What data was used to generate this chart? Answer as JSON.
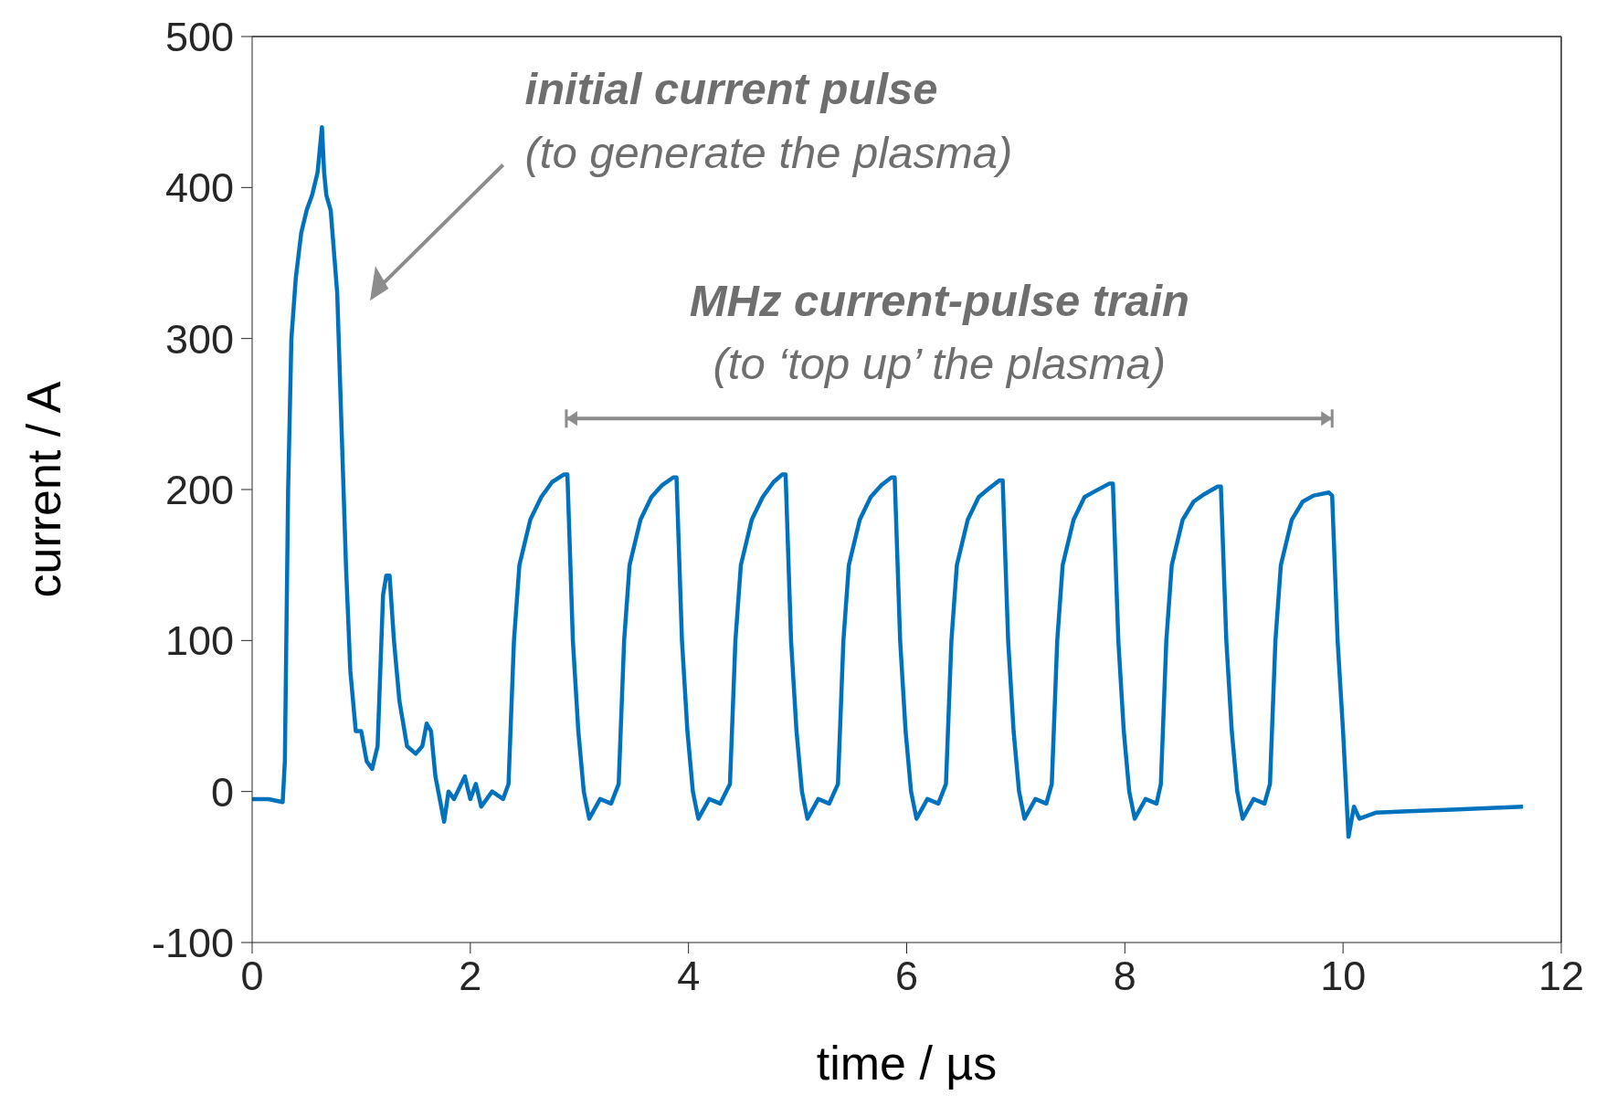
{
  "chart_data": {
    "type": "line",
    "xlabel": "time / µs",
    "ylabel": "current / A",
    "xlim": [
      0,
      12
    ],
    "ylim": [
      -100,
      500
    ],
    "xticks": [
      0,
      2,
      4,
      6,
      8,
      10,
      12
    ],
    "yticks": [
      -100,
      0,
      100,
      200,
      300,
      400,
      500
    ],
    "grid": false,
    "marker": "none",
    "line_style": "solid",
    "series": [
      {
        "color": "#0072bd",
        "x": [
          0,
          0.15,
          0.28,
          0.3,
          0.33,
          0.36,
          0.4,
          0.45,
          0.5,
          0.55,
          0.6,
          0.64,
          0.66,
          0.68,
          0.72,
          0.78,
          0.82,
          0.86,
          0.9,
          0.95,
          1.0,
          1.05,
          1.1,
          1.15,
          1.2,
          1.23,
          1.26,
          1.3,
          1.35,
          1.42,
          1.5,
          1.56,
          1.6,
          1.64,
          1.68,
          1.72,
          1.76,
          1.8,
          1.85,
          1.95,
          2.0,
          2.05,
          2.1,
          2.2,
          2.3,
          2.35,
          2.4,
          2.45,
          2.55,
          2.65,
          2.75,
          2.86,
          2.89,
          2.94,
          2.99,
          3.04,
          3.09,
          3.19,
          3.29,
          3.36,
          3.41,
          3.46,
          3.56,
          3.66,
          3.76,
          3.86,
          3.89,
          3.94,
          3.99,
          4.04,
          4.09,
          4.19,
          4.29,
          4.38,
          4.43,
          4.48,
          4.58,
          4.68,
          4.78,
          4.86,
          4.89,
          4.94,
          4.99,
          5.04,
          5.09,
          5.19,
          5.29,
          5.37,
          5.42,
          5.47,
          5.57,
          5.67,
          5.77,
          5.86,
          5.89,
          5.94,
          5.99,
          6.04,
          6.09,
          6.19,
          6.29,
          6.36,
          6.41,
          6.46,
          6.56,
          6.66,
          6.76,
          6.85,
          6.88,
          6.93,
          6.98,
          7.03,
          7.08,
          7.18,
          7.28,
          7.33,
          7.38,
          7.43,
          7.53,
          7.63,
          7.73,
          7.86,
          7.89,
          7.94,
          7.99,
          8.04,
          8.09,
          8.19,
          8.29,
          8.33,
          8.38,
          8.43,
          8.53,
          8.63,
          8.73,
          8.85,
          8.88,
          8.93,
          8.98,
          9.03,
          9.08,
          9.18,
          9.28,
          9.33,
          9.38,
          9.43,
          9.53,
          9.63,
          9.73,
          9.87,
          9.9,
          9.95,
          10.0,
          10.05,
          10.1,
          10.15,
          10.3,
          10.6,
          11.0,
          11.65
        ],
        "values": [
          -5,
          -5,
          -7,
          20,
          200,
          300,
          340,
          370,
          385,
          395,
          410,
          440,
          410,
          395,
          385,
          330,
          240,
          150,
          80,
          40,
          40,
          20,
          15,
          30,
          130,
          143,
          143,
          100,
          60,
          30,
          25,
          30,
          45,
          40,
          10,
          -5,
          -20,
          0,
          -5,
          10,
          -5,
          5,
          -10,
          0,
          -5,
          5,
          100,
          150,
          180,
          195,
          205,
          210,
          210,
          100,
          40,
          0,
          -18,
          -5,
          -8,
          5,
          100,
          150,
          180,
          195,
          203,
          208,
          208,
          100,
          40,
          0,
          -18,
          -5,
          -8,
          5,
          100,
          150,
          180,
          195,
          205,
          210,
          210,
          100,
          40,
          0,
          -18,
          -5,
          -8,
          5,
          100,
          150,
          180,
          195,
          203,
          208,
          208,
          100,
          40,
          0,
          -18,
          -5,
          -8,
          5,
          100,
          150,
          180,
          195,
          201,
          206,
          206,
          100,
          40,
          0,
          -18,
          -5,
          -8,
          5,
          100,
          150,
          180,
          195,
          199,
          204,
          204,
          100,
          40,
          0,
          -18,
          -5,
          -8,
          5,
          100,
          150,
          180,
          192,
          197,
          202,
          202,
          100,
          40,
          0,
          -18,
          -5,
          -8,
          5,
          100,
          150,
          180,
          192,
          196,
          198,
          196,
          100,
          40,
          -30,
          -10,
          -18,
          -14,
          -13,
          -12,
          -10
        ]
      }
    ],
    "annotations": [
      "initial current pulse",
      "(to generate the plasma)",
      "MHz current-pulse train",
      "(to ‘top up’ the plasma)"
    ]
  }
}
